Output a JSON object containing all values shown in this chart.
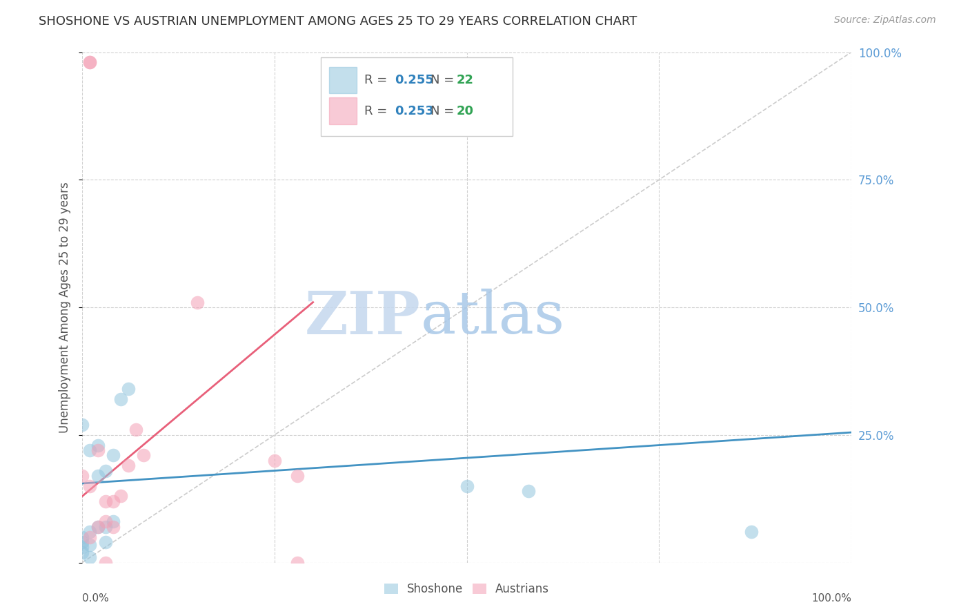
{
  "title": "SHOSHONE VS AUSTRIAN UNEMPLOYMENT AMONG AGES 25 TO 29 YEARS CORRELATION CHART",
  "source": "Source: ZipAtlas.com",
  "ylabel": "Unemployment Among Ages 25 to 29 years",
  "xlim": [
    0.0,
    1.0
  ],
  "ylim": [
    0.0,
    1.0
  ],
  "shoshone_color": "#92c5de",
  "austrian_color": "#f4a0b5",
  "shoshone_line_color": "#4393c3",
  "austrian_line_color": "#e8607a",
  "shoshone_R": "0.255",
  "shoshone_N": "22",
  "austrian_R": "0.253",
  "austrian_N": "20",
  "legend_R_color": "#3182bd",
  "legend_N_color": "#31a354",
  "shoshone_scatter_x": [
    0.0,
    0.0,
    0.0,
    0.0,
    0.0,
    0.01,
    0.01,
    0.01,
    0.01,
    0.02,
    0.02,
    0.02,
    0.03,
    0.03,
    0.03,
    0.04,
    0.04,
    0.05,
    0.06,
    0.5,
    0.58,
    0.87
  ],
  "shoshone_scatter_y": [
    0.27,
    0.05,
    0.04,
    0.03,
    0.02,
    0.22,
    0.06,
    0.035,
    0.01,
    0.17,
    0.23,
    0.07,
    0.18,
    0.07,
    0.04,
    0.21,
    0.08,
    0.32,
    0.34,
    0.15,
    0.14,
    0.06
  ],
  "austrian_scatter_x": [
    0.01,
    0.01,
    0.0,
    0.01,
    0.01,
    0.02,
    0.03,
    0.04,
    0.05,
    0.06,
    0.07,
    0.08,
    0.15,
    0.25,
    0.28,
    0.28,
    0.02,
    0.03,
    0.03,
    0.04
  ],
  "austrian_scatter_y": [
    0.98,
    0.98,
    0.17,
    0.15,
    0.05,
    0.22,
    0.0,
    0.12,
    0.13,
    0.19,
    0.26,
    0.21,
    0.51,
    0.2,
    0.17,
    0.0,
    0.07,
    0.08,
    0.12,
    0.07
  ],
  "shoshone_line_x": [
    0.0,
    1.0
  ],
  "shoshone_line_y": [
    0.155,
    0.255
  ],
  "austrian_line_x": [
    0.0,
    0.3
  ],
  "austrian_line_y": [
    0.13,
    0.51
  ],
  "diagonal_line_x": [
    0.0,
    1.0
  ],
  "diagonal_line_y": [
    0.0,
    1.0
  ],
  "watermark_zip": "ZIP",
  "watermark_atlas": "atlas",
  "background_color": "#ffffff",
  "grid_color": "#d0d0d0",
  "title_color": "#333333",
  "axis_label_color": "#555555",
  "right_axis_color": "#5b9bd5",
  "right_yticks": [
    0.25,
    0.5,
    0.75,
    1.0
  ],
  "right_yticklabels": [
    "25.0%",
    "50.0%",
    "75.0%",
    "100.0%"
  ]
}
